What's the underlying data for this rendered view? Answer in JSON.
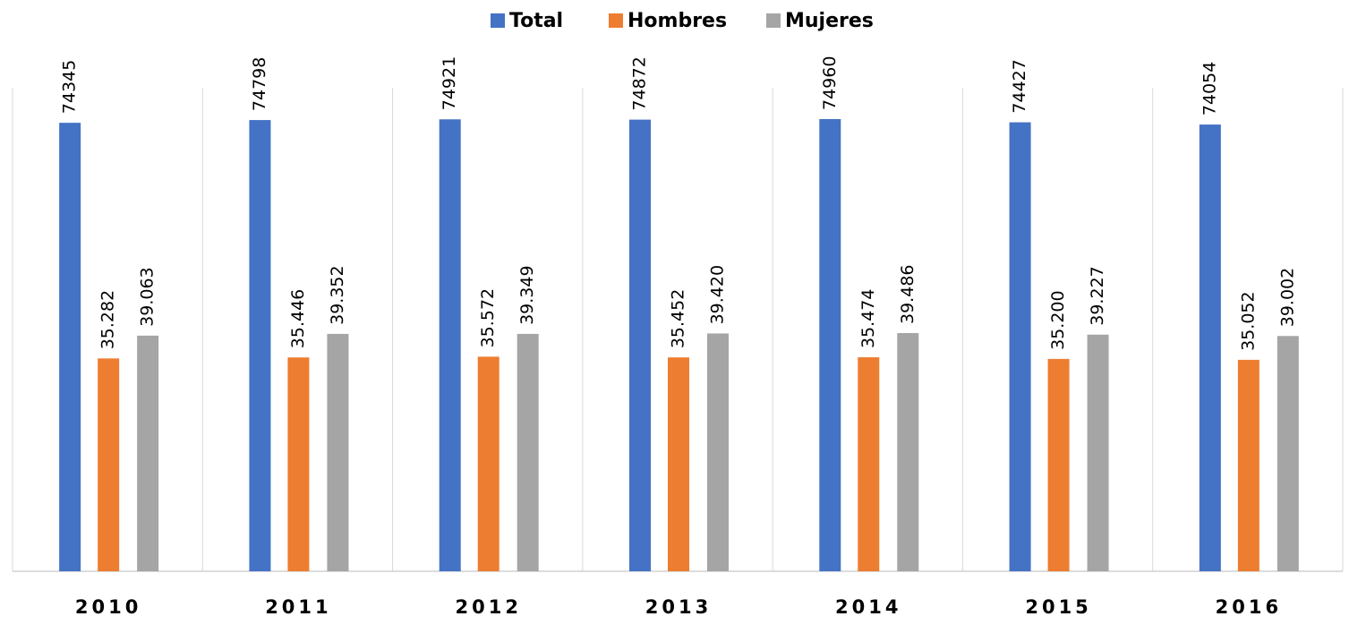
{
  "chart_data": {
    "type": "bar",
    "categories": [
      "2010",
      "2011",
      "2012",
      "2013",
      "2014",
      "2015",
      "2016"
    ],
    "series": [
      {
        "name": "Total",
        "color": "#4472c4",
        "values": [
          74345,
          74798,
          74921,
          74872,
          74960,
          74427,
          74054
        ]
      },
      {
        "name": "Hombres",
        "color": "#ed7d31",
        "values": [
          35282,
          35446,
          35572,
          35452,
          35474,
          35200,
          35052
        ],
        "value_labels": [
          "35.282",
          "35.446",
          "35.572",
          "35.452",
          "35.474",
          "35.200",
          "35.052"
        ]
      },
      {
        "name": "Mujeres",
        "color": "#a5a5a5",
        "values": [
          39063,
          39352,
          39349,
          39420,
          39486,
          39227,
          39002
        ],
        "value_labels": [
          "39.063",
          "39.352",
          "39.349",
          "39.420",
          "39.486",
          "39.227",
          "39.002"
        ]
      }
    ],
    "legend": "top"
  }
}
